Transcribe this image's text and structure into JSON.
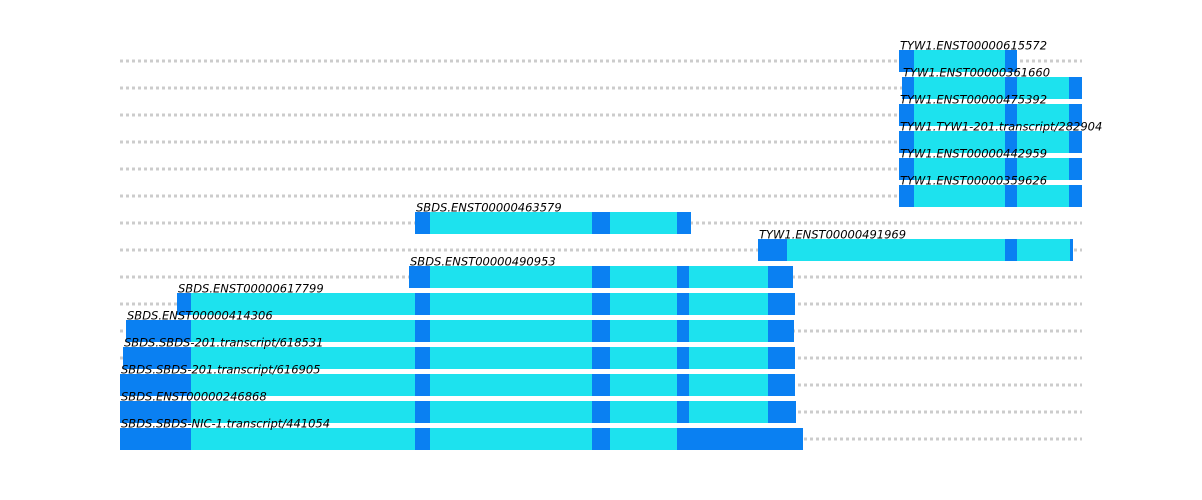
{
  "colors": {
    "utr": "#0a80f2",
    "cds": "#1de2ee",
    "guide": "#cccccc"
  },
  "scale": {
    "x_min": 0,
    "x_max": 962
  },
  "transcripts": [
    {
      "name": "TYW1.ENST00000615572",
      "segments": [
        {
          "start": 779,
          "end": 794,
          "type": "utr"
        },
        {
          "start": 794,
          "end": 885,
          "type": "cds"
        },
        {
          "start": 885,
          "end": 897,
          "type": "utr"
        }
      ]
    },
    {
      "name": "TYW1.ENST00000361660",
      "segments": [
        {
          "start": 782,
          "end": 794,
          "type": "utr"
        },
        {
          "start": 794,
          "end": 885,
          "type": "cds"
        },
        {
          "start": 885,
          "end": 897,
          "type": "utr"
        },
        {
          "start": 897,
          "end": 949,
          "type": "cds"
        },
        {
          "start": 949,
          "end": 962,
          "type": "utr"
        }
      ]
    },
    {
      "name": "TYW1.ENST00000475392",
      "segments": [
        {
          "start": 779,
          "end": 794,
          "type": "utr"
        },
        {
          "start": 794,
          "end": 885,
          "type": "cds"
        },
        {
          "start": 885,
          "end": 897,
          "type": "utr"
        },
        {
          "start": 897,
          "end": 949,
          "type": "cds"
        },
        {
          "start": 949,
          "end": 962,
          "type": "utr"
        }
      ]
    },
    {
      "name": "TYW1.TYW1-201.transcript/282904",
      "segments": [
        {
          "start": 779,
          "end": 794,
          "type": "utr"
        },
        {
          "start": 794,
          "end": 885,
          "type": "cds"
        },
        {
          "start": 885,
          "end": 897,
          "type": "utr"
        },
        {
          "start": 897,
          "end": 949,
          "type": "cds"
        },
        {
          "start": 949,
          "end": 962,
          "type": "utr"
        }
      ]
    },
    {
      "name": "TYW1.ENST00000442959",
      "segments": [
        {
          "start": 779,
          "end": 794,
          "type": "utr"
        },
        {
          "start": 794,
          "end": 885,
          "type": "cds"
        },
        {
          "start": 885,
          "end": 897,
          "type": "utr"
        },
        {
          "start": 897,
          "end": 949,
          "type": "cds"
        },
        {
          "start": 949,
          "end": 962,
          "type": "utr"
        }
      ]
    },
    {
      "name": "TYW1.ENST00000359626",
      "segments": [
        {
          "start": 779,
          "end": 794,
          "type": "utr"
        },
        {
          "start": 794,
          "end": 885,
          "type": "cds"
        },
        {
          "start": 885,
          "end": 897,
          "type": "utr"
        },
        {
          "start": 897,
          "end": 949,
          "type": "cds"
        },
        {
          "start": 949,
          "end": 962,
          "type": "utr"
        }
      ]
    },
    {
      "name": "SBDS.ENST00000463579",
      "segments": [
        {
          "start": 295,
          "end": 310,
          "type": "utr"
        },
        {
          "start": 310,
          "end": 472,
          "type": "cds"
        },
        {
          "start": 472,
          "end": 490,
          "type": "utr"
        },
        {
          "start": 490,
          "end": 557,
          "type": "cds"
        },
        {
          "start": 557,
          "end": 571,
          "type": "utr"
        }
      ]
    },
    {
      "name": "TYW1.ENST00000491969",
      "segments": [
        {
          "start": 638,
          "end": 667,
          "type": "utr"
        },
        {
          "start": 667,
          "end": 885,
          "type": "cds"
        },
        {
          "start": 885,
          "end": 897,
          "type": "utr"
        },
        {
          "start": 897,
          "end": 950,
          "type": "cds"
        },
        {
          "start": 950,
          "end": 953,
          "type": "utr"
        }
      ]
    },
    {
      "name": "SBDS.ENST00000490953",
      "segments": [
        {
          "start": 289,
          "end": 310,
          "type": "utr"
        },
        {
          "start": 310,
          "end": 472,
          "type": "cds"
        },
        {
          "start": 472,
          "end": 490,
          "type": "utr"
        },
        {
          "start": 490,
          "end": 557,
          "type": "cds"
        },
        {
          "start": 557,
          "end": 569,
          "type": "utr"
        },
        {
          "start": 569,
          "end": 648,
          "type": "cds"
        },
        {
          "start": 648,
          "end": 673,
          "type": "utr"
        }
      ]
    },
    {
      "name": "SBDS.ENST00000617799",
      "segments": [
        {
          "start": 57,
          "end": 71,
          "type": "utr"
        },
        {
          "start": 71,
          "end": 295,
          "type": "cds"
        },
        {
          "start": 295,
          "end": 310,
          "type": "utr"
        },
        {
          "start": 310,
          "end": 472,
          "type": "cds"
        },
        {
          "start": 472,
          "end": 490,
          "type": "utr"
        },
        {
          "start": 490,
          "end": 557,
          "type": "cds"
        },
        {
          "start": 557,
          "end": 569,
          "type": "utr"
        },
        {
          "start": 569,
          "end": 648,
          "type": "cds"
        },
        {
          "start": 648,
          "end": 675,
          "type": "utr"
        }
      ]
    },
    {
      "name": "SBDS.ENST00000414306",
      "segments": [
        {
          "start": 6,
          "end": 71,
          "type": "utr"
        },
        {
          "start": 71,
          "end": 295,
          "type": "cds"
        },
        {
          "start": 295,
          "end": 310,
          "type": "utr"
        },
        {
          "start": 310,
          "end": 472,
          "type": "cds"
        },
        {
          "start": 472,
          "end": 490,
          "type": "utr"
        },
        {
          "start": 490,
          "end": 557,
          "type": "cds"
        },
        {
          "start": 557,
          "end": 569,
          "type": "utr"
        },
        {
          "start": 569,
          "end": 648,
          "type": "cds"
        },
        {
          "start": 648,
          "end": 674,
          "type": "utr"
        }
      ]
    },
    {
      "name": "SBDS.SBDS-201.transcript/618531",
      "segments": [
        {
          "start": 3,
          "end": 71,
          "type": "utr"
        },
        {
          "start": 71,
          "end": 295,
          "type": "cds"
        },
        {
          "start": 295,
          "end": 310,
          "type": "utr"
        },
        {
          "start": 310,
          "end": 472,
          "type": "cds"
        },
        {
          "start": 472,
          "end": 490,
          "type": "utr"
        },
        {
          "start": 490,
          "end": 557,
          "type": "cds"
        },
        {
          "start": 557,
          "end": 569,
          "type": "utr"
        },
        {
          "start": 569,
          "end": 648,
          "type": "cds"
        },
        {
          "start": 648,
          "end": 675,
          "type": "utr"
        }
      ]
    },
    {
      "name": "SBDS.SBDS-201.transcript/616905",
      "segments": [
        {
          "start": 0,
          "end": 71,
          "type": "utr"
        },
        {
          "start": 71,
          "end": 295,
          "type": "cds"
        },
        {
          "start": 295,
          "end": 310,
          "type": "utr"
        },
        {
          "start": 310,
          "end": 472,
          "type": "cds"
        },
        {
          "start": 472,
          "end": 490,
          "type": "utr"
        },
        {
          "start": 490,
          "end": 557,
          "type": "cds"
        },
        {
          "start": 557,
          "end": 569,
          "type": "utr"
        },
        {
          "start": 569,
          "end": 648,
          "type": "cds"
        },
        {
          "start": 648,
          "end": 675,
          "type": "utr"
        }
      ]
    },
    {
      "name": "SBDS.ENST00000246868",
      "segments": [
        {
          "start": 0,
          "end": 71,
          "type": "utr"
        },
        {
          "start": 71,
          "end": 295,
          "type": "cds"
        },
        {
          "start": 295,
          "end": 310,
          "type": "utr"
        },
        {
          "start": 310,
          "end": 472,
          "type": "cds"
        },
        {
          "start": 472,
          "end": 490,
          "type": "utr"
        },
        {
          "start": 490,
          "end": 557,
          "type": "cds"
        },
        {
          "start": 557,
          "end": 569,
          "type": "utr"
        },
        {
          "start": 569,
          "end": 648,
          "type": "cds"
        },
        {
          "start": 648,
          "end": 676,
          "type": "utr"
        }
      ]
    },
    {
      "name": "SBDS.SBDS-NIC-1.transcript/441054",
      "segments": [
        {
          "start": 0,
          "end": 71,
          "type": "utr"
        },
        {
          "start": 71,
          "end": 295,
          "type": "cds"
        },
        {
          "start": 295,
          "end": 310,
          "type": "utr"
        },
        {
          "start": 310,
          "end": 472,
          "type": "cds"
        },
        {
          "start": 472,
          "end": 490,
          "type": "utr"
        },
        {
          "start": 490,
          "end": 557,
          "type": "cds"
        },
        {
          "start": 557,
          "end": 683,
          "type": "utr"
        }
      ]
    }
  ]
}
